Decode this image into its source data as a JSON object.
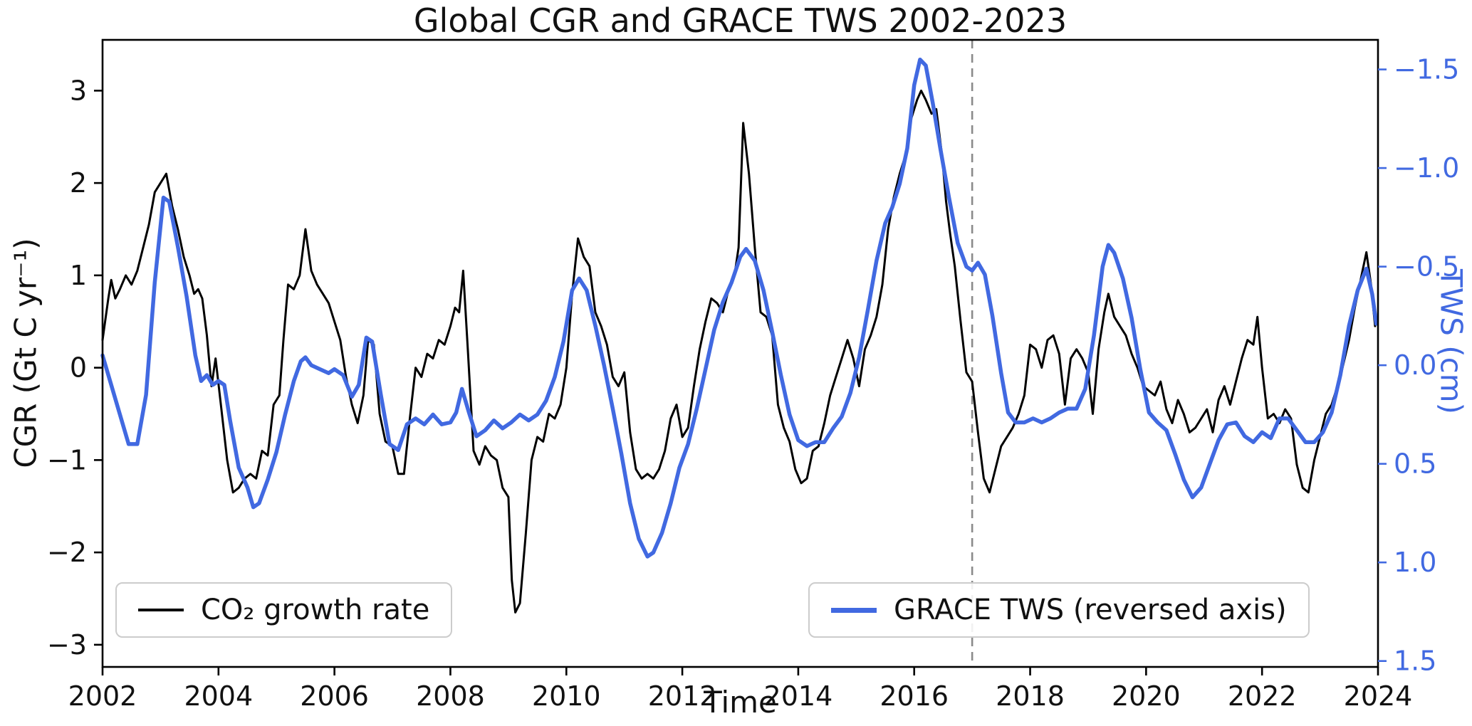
{
  "title": "Global CGR and GRACE TWS 2002-2023",
  "axes": {
    "x_label": "Time",
    "y_left_label": "CGR (Gt C yr⁻¹)",
    "y_right_label": "TWS (cm)"
  },
  "legend": {
    "cgr_label": "CO₂ growth rate",
    "tws_label": "GRACE TWS  (reversed axis)"
  },
  "colors": {
    "cgr_line": "#000000",
    "tws_line": "#4169e1",
    "dashed_vline": "#8a8a8a",
    "axis": "#000000"
  },
  "chart_data": {
    "type": "line",
    "title": "Global CGR and GRACE TWS 2002-2023",
    "xlabel": "Time",
    "ylabel_left": "CGR (Gt C yr⁻¹)",
    "ylabel_right": "TWS (cm)",
    "xlim": [
      2002,
      2024
    ],
    "ylim_left": [
      -3.24,
      3.55
    ],
    "ylim_right_reversed": [
      -1.65,
      1.53
    ],
    "grid": false,
    "vline_x": 2017.0,
    "x_ticks": {
      "values": [
        2002,
        2004,
        2006,
        2008,
        2010,
        2012,
        2014,
        2016,
        2018,
        2020,
        2022,
        2024
      ],
      "labels": [
        "2002",
        "2004",
        "2006",
        "2008",
        "2010",
        "2012",
        "2014",
        "2016",
        "2018",
        "2020",
        "2022",
        "2024"
      ]
    },
    "y_left_ticks": {
      "values": [
        -3,
        -2,
        -1,
        0,
        1,
        2,
        3
      ],
      "labels": [
        "−3",
        "−2",
        "−1",
        "0",
        "1",
        "2",
        "3"
      ]
    },
    "y_right_ticks": {
      "values": [
        -1.5,
        -1.0,
        -0.5,
        0.0,
        0.5,
        1.0,
        1.5
      ],
      "labels": [
        "−1.5",
        "−1.0",
        "−0.5",
        "0.0",
        "0.5",
        "1.0",
        "1.5"
      ]
    },
    "series": [
      {
        "name": "CO₂ growth rate",
        "axis": "left",
        "color": "#000000",
        "width": 3,
        "x": [
          2002.0,
          2002.1,
          2002.15,
          2002.22,
          2002.3,
          2002.4,
          2002.5,
          2002.6,
          2002.7,
          2002.8,
          2002.9,
          2003.0,
          2003.1,
          2003.2,
          2003.3,
          2003.4,
          2003.5,
          2003.58,
          2003.65,
          2003.72,
          2003.8,
          2003.88,
          2003.95,
          2004.05,
          2004.15,
          2004.25,
          2004.35,
          2004.45,
          2004.55,
          2004.65,
          2004.75,
          2004.85,
          2004.95,
          2005.05,
          2005.12,
          2005.2,
          2005.3,
          2005.4,
          2005.5,
          2005.6,
          2005.7,
          2005.8,
          2005.9,
          2006.0,
          2006.1,
          2006.2,
          2006.3,
          2006.4,
          2006.5,
          2006.58,
          2006.68,
          2006.78,
          2006.88,
          2007.0,
          2007.1,
          2007.2,
          2007.3,
          2007.4,
          2007.5,
          2007.6,
          2007.7,
          2007.8,
          2007.9,
          2008.0,
          2008.08,
          2008.15,
          2008.22,
          2008.3,
          2008.4,
          2008.5,
          2008.6,
          2008.7,
          2008.8,
          2008.9,
          2009.0,
          2009.06,
          2009.12,
          2009.2,
          2009.3,
          2009.4,
          2009.5,
          2009.6,
          2009.7,
          2009.8,
          2009.9,
          2010.0,
          2010.1,
          2010.2,
          2010.3,
          2010.4,
          2010.5,
          2010.6,
          2010.7,
          2010.8,
          2010.9,
          2011.0,
          2011.1,
          2011.2,
          2011.3,
          2011.4,
          2011.5,
          2011.6,
          2011.7,
          2011.8,
          2011.9,
          2012.0,
          2012.1,
          2012.2,
          2012.3,
          2012.4,
          2012.5,
          2012.6,
          2012.7,
          2012.8,
          2012.9,
          2012.97,
          2013.05,
          2013.15,
          2013.25,
          2013.35,
          2013.45,
          2013.55,
          2013.65,
          2013.75,
          2013.85,
          2013.95,
          2014.05,
          2014.15,
          2014.25,
          2014.35,
          2014.45,
          2014.55,
          2014.65,
          2014.75,
          2014.85,
          2014.95,
          2015.05,
          2015.15,
          2015.25,
          2015.35,
          2015.45,
          2015.55,
          2015.65,
          2015.75,
          2015.85,
          2015.95,
          2016.05,
          2016.12,
          2016.2,
          2016.3,
          2016.38,
          2016.48,
          2016.55,
          2016.62,
          2016.7,
          2016.8,
          2016.9,
          2017.0,
          2017.1,
          2017.2,
          2017.3,
          2017.4,
          2017.5,
          2017.6,
          2017.7,
          2017.8,
          2017.9,
          2018.0,
          2018.1,
          2018.2,
          2018.3,
          2018.4,
          2018.5,
          2018.6,
          2018.7,
          2018.8,
          2018.9,
          2019.0,
          2019.08,
          2019.18,
          2019.28,
          2019.35,
          2019.45,
          2019.55,
          2019.65,
          2019.75,
          2019.85,
          2019.95,
          2020.05,
          2020.15,
          2020.25,
          2020.35,
          2020.45,
          2020.55,
          2020.65,
          2020.75,
          2020.85,
          2020.95,
          2021.05,
          2021.15,
          2021.25,
          2021.35,
          2021.45,
          2021.55,
          2021.65,
          2021.75,
          2021.85,
          2021.92,
          2022.0,
          2022.1,
          2022.2,
          2022.3,
          2022.4,
          2022.5,
          2022.6,
          2022.7,
          2022.8,
          2022.9,
          2023.0,
          2023.1,
          2023.2,
          2023.35,
          2023.5,
          2023.6,
          2023.7,
          2023.8,
          2023.88,
          2023.95
        ],
        "y": [
          0.3,
          0.75,
          0.95,
          0.75,
          0.85,
          1.0,
          0.9,
          1.05,
          1.3,
          1.55,
          1.9,
          2.0,
          2.1,
          1.75,
          1.5,
          1.2,
          1.0,
          0.8,
          0.85,
          0.75,
          0.35,
          -0.2,
          0.1,
          -0.45,
          -1.0,
          -1.35,
          -1.3,
          -1.2,
          -1.15,
          -1.2,
          -0.9,
          -0.95,
          -0.4,
          -0.3,
          0.3,
          0.9,
          0.85,
          1.0,
          1.5,
          1.05,
          0.9,
          0.8,
          0.7,
          0.5,
          0.3,
          -0.1,
          -0.4,
          -0.6,
          -0.3,
          0.3,
          0.25,
          -0.5,
          -0.8,
          -0.85,
          -1.15,
          -1.15,
          -0.55,
          0.0,
          -0.1,
          0.15,
          0.1,
          0.3,
          0.25,
          0.45,
          0.65,
          0.6,
          1.05,
          0.2,
          -0.9,
          -1.05,
          -0.85,
          -0.95,
          -1.0,
          -1.3,
          -1.4,
          -2.3,
          -2.65,
          -2.55,
          -1.8,
          -1.0,
          -0.75,
          -0.8,
          -0.5,
          -0.55,
          -0.4,
          0.0,
          0.8,
          1.4,
          1.2,
          1.1,
          0.6,
          0.45,
          0.25,
          -0.1,
          -0.2,
          -0.05,
          -0.7,
          -1.1,
          -1.2,
          -1.15,
          -1.2,
          -1.1,
          -0.9,
          -0.55,
          -0.4,
          -0.75,
          -0.65,
          -0.2,
          0.2,
          0.5,
          0.75,
          0.7,
          0.6,
          0.85,
          1.0,
          1.3,
          2.65,
          2.1,
          1.3,
          0.6,
          0.55,
          0.35,
          -0.4,
          -0.65,
          -0.8,
          -1.1,
          -1.25,
          -1.2,
          -0.9,
          -0.85,
          -0.6,
          -0.3,
          -0.1,
          0.1,
          0.3,
          0.1,
          -0.2,
          0.2,
          0.35,
          0.55,
          0.9,
          1.5,
          1.85,
          2.1,
          2.3,
          2.7,
          2.9,
          3.0,
          2.9,
          2.75,
          2.8,
          2.3,
          1.8,
          1.45,
          1.1,
          0.5,
          -0.05,
          -0.15,
          -0.7,
          -1.2,
          -1.35,
          -1.1,
          -0.85,
          -0.75,
          -0.65,
          -0.5,
          -0.3,
          0.25,
          0.2,
          0.0,
          0.3,
          0.35,
          0.15,
          -0.4,
          0.1,
          0.2,
          0.1,
          -0.05,
          -0.5,
          0.2,
          0.6,
          0.8,
          0.55,
          0.45,
          0.35,
          0.15,
          0.0,
          -0.2,
          -0.25,
          -0.3,
          -0.15,
          -0.45,
          -0.6,
          -0.35,
          -0.5,
          -0.7,
          -0.65,
          -0.55,
          -0.45,
          -0.7,
          -0.35,
          -0.2,
          -0.4,
          -0.15,
          0.1,
          0.3,
          0.25,
          0.55,
          0.0,
          -0.55,
          -0.5,
          -0.6,
          -0.45,
          -0.55,
          -1.05,
          -1.3,
          -1.35,
          -1.0,
          -0.75,
          -0.5,
          -0.4,
          -0.1,
          0.3,
          0.65,
          0.95,
          1.25,
          0.9,
          0.45
        ]
      },
      {
        "name": "GRACE TWS (reversed axis)",
        "axis": "right",
        "color": "#4169e1",
        "width": 5.5,
        "x": [
          2002.0,
          2002.15,
          2002.3,
          2002.45,
          2002.6,
          2002.75,
          2002.9,
          2003.05,
          2003.15,
          2003.3,
          2003.45,
          2003.6,
          2003.7,
          2003.8,
          2003.9,
          2004.0,
          2004.1,
          2004.2,
          2004.35,
          2004.5,
          2004.6,
          2004.7,
          2004.85,
          2005.0,
          2005.15,
          2005.3,
          2005.42,
          2005.5,
          2005.6,
          2005.75,
          2005.9,
          2006.0,
          2006.15,
          2006.3,
          2006.42,
          2006.55,
          2006.65,
          2006.8,
          2006.95,
          2007.1,
          2007.25,
          2007.4,
          2007.55,
          2007.7,
          2007.85,
          2008.0,
          2008.1,
          2008.2,
          2008.32,
          2008.45,
          2008.6,
          2008.75,
          2008.9,
          2009.05,
          2009.2,
          2009.35,
          2009.5,
          2009.65,
          2009.8,
          2009.95,
          2010.1,
          2010.22,
          2010.35,
          2010.5,
          2010.65,
          2010.8,
          2010.95,
          2011.1,
          2011.25,
          2011.4,
          2011.5,
          2011.65,
          2011.8,
          2011.95,
          2012.1,
          2012.25,
          2012.4,
          2012.55,
          2012.7,
          2012.85,
          2013.0,
          2013.1,
          2013.25,
          2013.4,
          2013.55,
          2013.7,
          2013.85,
          2014.0,
          2014.15,
          2014.3,
          2014.45,
          2014.6,
          2014.75,
          2014.9,
          2015.05,
          2015.2,
          2015.35,
          2015.5,
          2015.62,
          2015.75,
          2015.88,
          2016.0,
          2016.1,
          2016.2,
          2016.32,
          2016.45,
          2016.6,
          2016.75,
          2016.9,
          2017.0,
          2017.1,
          2017.22,
          2017.35,
          2017.5,
          2017.62,
          2017.75,
          2017.9,
          2018.05,
          2018.2,
          2018.35,
          2018.5,
          2018.65,
          2018.8,
          2018.95,
          2019.1,
          2019.25,
          2019.35,
          2019.45,
          2019.6,
          2019.75,
          2019.9,
          2020.05,
          2020.2,
          2020.35,
          2020.5,
          2020.65,
          2020.8,
          2020.95,
          2021.1,
          2021.25,
          2021.4,
          2021.55,
          2021.7,
          2021.85,
          2022.0,
          2022.15,
          2022.3,
          2022.45,
          2022.6,
          2022.75,
          2022.9,
          2023.05,
          2023.2,
          2023.35,
          2023.5,
          2023.65,
          2023.8,
          2023.9,
          2023.97
        ],
        "y": [
          -0.05,
          0.1,
          0.25,
          0.4,
          0.4,
          0.15,
          -0.42,
          -0.85,
          -0.83,
          -0.6,
          -0.35,
          -0.05,
          0.08,
          0.05,
          0.1,
          0.08,
          0.1,
          0.28,
          0.52,
          0.62,
          0.72,
          0.7,
          0.58,
          0.44,
          0.25,
          0.08,
          -0.02,
          -0.04,
          0.0,
          0.02,
          0.04,
          0.02,
          0.05,
          0.16,
          0.1,
          -0.14,
          -0.12,
          0.15,
          0.4,
          0.43,
          0.3,
          0.27,
          0.3,
          0.25,
          0.3,
          0.29,
          0.24,
          0.12,
          0.24,
          0.36,
          0.33,
          0.28,
          0.32,
          0.29,
          0.25,
          0.28,
          0.25,
          0.18,
          0.06,
          -0.12,
          -0.38,
          -0.44,
          -0.38,
          -0.2,
          0.0,
          0.22,
          0.45,
          0.7,
          0.88,
          0.97,
          0.95,
          0.85,
          0.7,
          0.52,
          0.4,
          0.22,
          0.02,
          -0.18,
          -0.32,
          -0.42,
          -0.55,
          -0.59,
          -0.53,
          -0.38,
          -0.17,
          0.05,
          0.25,
          0.38,
          0.41,
          0.39,
          0.39,
          0.32,
          0.26,
          0.14,
          -0.04,
          -0.28,
          -0.53,
          -0.72,
          -0.8,
          -0.92,
          -1.1,
          -1.42,
          -1.55,
          -1.52,
          -1.33,
          -1.1,
          -0.85,
          -0.62,
          -0.5,
          -0.48,
          -0.52,
          -0.46,
          -0.25,
          0.04,
          0.24,
          0.29,
          0.29,
          0.27,
          0.29,
          0.27,
          0.24,
          0.22,
          0.22,
          0.12,
          -0.15,
          -0.5,
          -0.61,
          -0.57,
          -0.44,
          -0.24,
          0.02,
          0.24,
          0.29,
          0.33,
          0.45,
          0.58,
          0.67,
          0.62,
          0.5,
          0.38,
          0.3,
          0.29,
          0.36,
          0.39,
          0.34,
          0.37,
          0.27,
          0.27,
          0.33,
          0.39,
          0.39,
          0.34,
          0.24,
          0.05,
          -0.2,
          -0.38,
          -0.49,
          -0.36,
          -0.21
        ]
      }
    ]
  }
}
